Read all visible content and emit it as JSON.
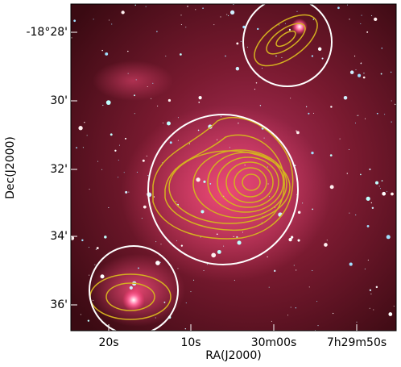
{
  "axes": {
    "x_label": "RA(J2000)",
    "y_label": "Dec(J2000)",
    "x_tick_labels": [
      "20s",
      "10s",
      "30m00s",
      "7h29m50s"
    ],
    "y_tick_labels": [
      "-18°28'",
      "30'",
      "32'",
      "34'",
      "36'"
    ]
  }
}
